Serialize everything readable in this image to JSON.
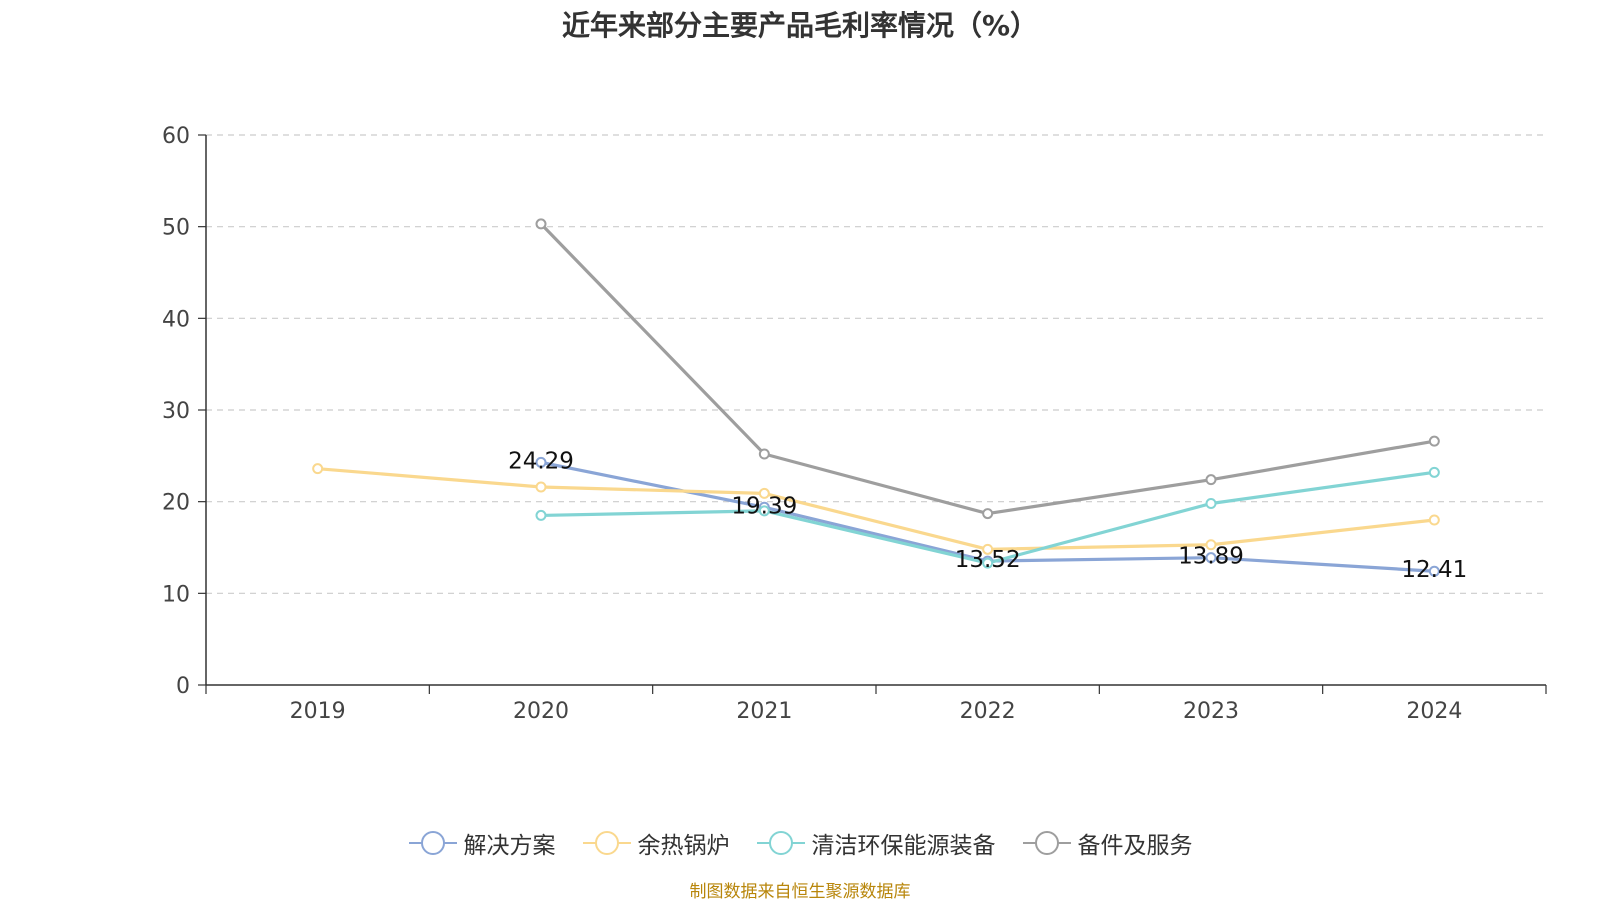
{
  "chart_data": {
    "type": "line",
    "title": "近年来部分主要产品毛利率情况（%）",
    "categories": [
      "2019",
      "2020",
      "2021",
      "2022",
      "2023",
      "2024"
    ],
    "ylim": [
      0,
      60
    ],
    "yticks": [
      "0",
      "10",
      "20",
      "30",
      "40",
      "50",
      "60"
    ],
    "grid": true,
    "legend_position": "bottom",
    "series": [
      {
        "name": "解决方案",
        "color": "#8aa5d6",
        "values": [
          null,
          24.29,
          19.39,
          13.52,
          13.89,
          12.41
        ],
        "labels": [
          null,
          "24.29",
          "19.39",
          "13.52",
          "13.89",
          "12.41"
        ]
      },
      {
        "name": "余热锅炉",
        "color": "#fad88e",
        "values": [
          23.6,
          21.6,
          20.9,
          14.8,
          15.3,
          18.0
        ],
        "labels": [
          null,
          null,
          null,
          null,
          null,
          null
        ]
      },
      {
        "name": "清洁环保能源装备",
        "color": "#82d4d4",
        "values": [
          null,
          18.5,
          19.0,
          13.3,
          19.8,
          23.2
        ],
        "labels": [
          null,
          null,
          null,
          null,
          null,
          null
        ]
      },
      {
        "name": "备件及服务",
        "color": "#9e9e9e",
        "values": [
          null,
          50.3,
          25.2,
          18.7,
          22.4,
          26.6
        ],
        "labels": [
          null,
          null,
          null,
          null,
          null,
          null
        ]
      }
    ],
    "source": "制图数据来自恒生聚源数据库"
  }
}
